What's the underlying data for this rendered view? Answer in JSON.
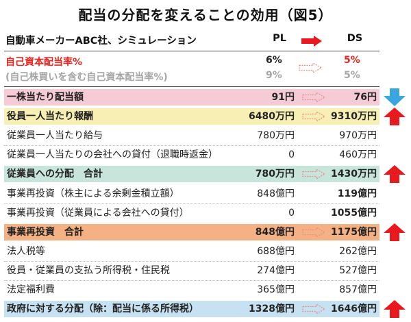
{
  "title": "配当の分配を変えることの効用（図5）",
  "header": {
    "label": "自動車メーカーABC社、シミュレーション",
    "pl": "PL",
    "ds": "DS"
  },
  "roe": [
    {
      "label": "自己資本配当率%",
      "pl": "6%",
      "ds": "5%",
      "style": "red"
    },
    {
      "label": "(自己株買いを含む自己資本配当率%)",
      "pl": "9%",
      "ds": "5%",
      "style": "gray"
    }
  ],
  "rows": [
    {
      "label": "一株当たり配当額",
      "pl": "91円",
      "ds": "76円",
      "color": "pink",
      "bold": true,
      "arrow": true,
      "indicator": "down"
    },
    {
      "label": "役員一人当たり報酬",
      "pl": "6480万円",
      "ds": "9310万円",
      "color": "yellow",
      "bold": true,
      "arrow": true,
      "indicator": "up"
    },
    {
      "label": "従業員一人当たり給与",
      "pl": "780万円",
      "ds": "970万円",
      "color": "",
      "bold": false,
      "arrow": false,
      "indicator": ""
    },
    {
      "label": "従業員一人当たりの会社への貸付（退職時返金）",
      "pl": "0",
      "ds": "460万円",
      "color": "",
      "bold": false,
      "arrow": false,
      "indicator": ""
    },
    {
      "label": "従業員への分配　合計",
      "pl": "780万円",
      "ds": "1430万円",
      "color": "green",
      "bold": true,
      "arrow": true,
      "indicator": "up"
    },
    {
      "label": "事業再投資（株主による余剰金積立額）",
      "pl": "848億円",
      "ds": "119億円",
      "color": "",
      "bold": false,
      "dsBold": true,
      "arrow": false,
      "indicator": ""
    },
    {
      "label": "事業再投資（従業員による会社への貸付）",
      "pl": "0",
      "ds": "1055億円",
      "color": "",
      "bold": false,
      "dsBold": true,
      "arrow": false,
      "indicator": ""
    },
    {
      "label": "事業再投資　合計",
      "pl": "848億円",
      "ds": "1175億円",
      "color": "orange",
      "bold": true,
      "arrow": true,
      "indicator": "up"
    },
    {
      "label": "法人税等",
      "pl": "688億円",
      "ds": "262億円",
      "color": "",
      "bold": false,
      "arrow": false,
      "indicator": ""
    },
    {
      "label": "役員・従業員の支払う所得税・住民税",
      "pl": "274億円",
      "ds": "527億円",
      "color": "",
      "bold": false,
      "arrow": false,
      "indicator": ""
    },
    {
      "label": "法定福利費",
      "pl": "365億円",
      "ds": "857億円",
      "color": "",
      "bold": false,
      "arrow": false,
      "indicator": ""
    },
    {
      "label": "政府に対する分配（除：配当に係る所得税）",
      "pl": "1328億円",
      "ds": "1646億円",
      "color": "blue",
      "bold": true,
      "arrow": true,
      "indicator": "up"
    }
  ],
  "colors": {
    "red": "#e8251f",
    "arrow_outline": "#f08a8a",
    "down": "#3aa6e0",
    "up": "#e8191f",
    "pink": "#f5ccd6",
    "yellow": "#f7efb3",
    "green": "#c7e5da",
    "orange": "#f4b183",
    "blue": "#c6e1f1"
  },
  "icons": {
    "header_arrow": "solid-right-arrow-icon",
    "row_arrow": "outline-right-arrow-icon",
    "up": "up-arrow-icon",
    "down": "down-arrow-icon"
  }
}
